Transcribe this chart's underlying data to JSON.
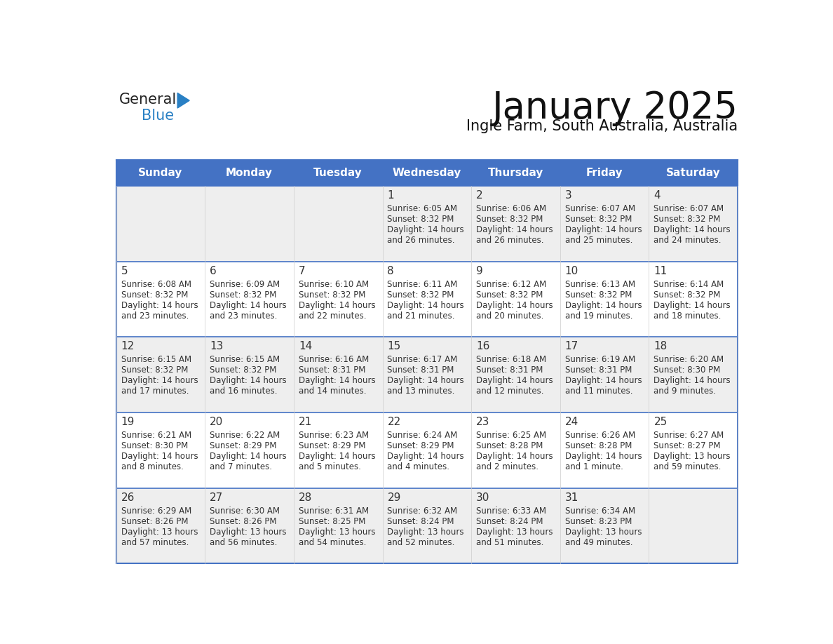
{
  "title": "January 2025",
  "subtitle": "Ingle Farm, South Australia, Australia",
  "header_bg": "#4472C4",
  "header_text_color": "#FFFFFF",
  "header_days": [
    "Sunday",
    "Monday",
    "Tuesday",
    "Wednesday",
    "Thursday",
    "Friday",
    "Saturday"
  ],
  "row0_bg": "#EEEEEE",
  "row1_bg": "#FFFFFF",
  "row2_bg": "#EEEEEE",
  "row3_bg": "#FFFFFF",
  "row4_bg": "#EEEEEE",
  "cell_text_color": "#333333",
  "day_number_color": "#333333",
  "border_color": "#4472C4",
  "logo_general_color": "#222222",
  "logo_blue_color": "#2980C4",
  "weeks": [
    {
      "days": [
        {
          "day": "",
          "sunrise": "",
          "sunset": "",
          "daylight_h": "",
          "daylight_m": ""
        },
        {
          "day": "",
          "sunrise": "",
          "sunset": "",
          "daylight_h": "",
          "daylight_m": ""
        },
        {
          "day": "",
          "sunrise": "",
          "sunset": "",
          "daylight_h": "",
          "daylight_m": ""
        },
        {
          "day": "1",
          "sunrise": "6:05 AM",
          "sunset": "8:32 PM",
          "daylight_h": "14 hours",
          "daylight_m": "and 26 minutes."
        },
        {
          "day": "2",
          "sunrise": "6:06 AM",
          "sunset": "8:32 PM",
          "daylight_h": "14 hours",
          "daylight_m": "and 26 minutes."
        },
        {
          "day": "3",
          "sunrise": "6:07 AM",
          "sunset": "8:32 PM",
          "daylight_h": "14 hours",
          "daylight_m": "and 25 minutes."
        },
        {
          "day": "4",
          "sunrise": "6:07 AM",
          "sunset": "8:32 PM",
          "daylight_h": "14 hours",
          "daylight_m": "and 24 minutes."
        }
      ]
    },
    {
      "days": [
        {
          "day": "5",
          "sunrise": "6:08 AM",
          "sunset": "8:32 PM",
          "daylight_h": "14 hours",
          "daylight_m": "and 23 minutes."
        },
        {
          "day": "6",
          "sunrise": "6:09 AM",
          "sunset": "8:32 PM",
          "daylight_h": "14 hours",
          "daylight_m": "and 23 minutes."
        },
        {
          "day": "7",
          "sunrise": "6:10 AM",
          "sunset": "8:32 PM",
          "daylight_h": "14 hours",
          "daylight_m": "and 22 minutes."
        },
        {
          "day": "8",
          "sunrise": "6:11 AM",
          "sunset": "8:32 PM",
          "daylight_h": "14 hours",
          "daylight_m": "and 21 minutes."
        },
        {
          "day": "9",
          "sunrise": "6:12 AM",
          "sunset": "8:32 PM",
          "daylight_h": "14 hours",
          "daylight_m": "and 20 minutes."
        },
        {
          "day": "10",
          "sunrise": "6:13 AM",
          "sunset": "8:32 PM",
          "daylight_h": "14 hours",
          "daylight_m": "and 19 minutes."
        },
        {
          "day": "11",
          "sunrise": "6:14 AM",
          "sunset": "8:32 PM",
          "daylight_h": "14 hours",
          "daylight_m": "and 18 minutes."
        }
      ]
    },
    {
      "days": [
        {
          "day": "12",
          "sunrise": "6:15 AM",
          "sunset": "8:32 PM",
          "daylight_h": "14 hours",
          "daylight_m": "and 17 minutes."
        },
        {
          "day": "13",
          "sunrise": "6:15 AM",
          "sunset": "8:32 PM",
          "daylight_h": "14 hours",
          "daylight_m": "and 16 minutes."
        },
        {
          "day": "14",
          "sunrise": "6:16 AM",
          "sunset": "8:31 PM",
          "daylight_h": "14 hours",
          "daylight_m": "and 14 minutes."
        },
        {
          "day": "15",
          "sunrise": "6:17 AM",
          "sunset": "8:31 PM",
          "daylight_h": "14 hours",
          "daylight_m": "and 13 minutes."
        },
        {
          "day": "16",
          "sunrise": "6:18 AM",
          "sunset": "8:31 PM",
          "daylight_h": "14 hours",
          "daylight_m": "and 12 minutes."
        },
        {
          "day": "17",
          "sunrise": "6:19 AM",
          "sunset": "8:31 PM",
          "daylight_h": "14 hours",
          "daylight_m": "and 11 minutes."
        },
        {
          "day": "18",
          "sunrise": "6:20 AM",
          "sunset": "8:30 PM",
          "daylight_h": "14 hours",
          "daylight_m": "and 9 minutes."
        }
      ]
    },
    {
      "days": [
        {
          "day": "19",
          "sunrise": "6:21 AM",
          "sunset": "8:30 PM",
          "daylight_h": "14 hours",
          "daylight_m": "and 8 minutes."
        },
        {
          "day": "20",
          "sunrise": "6:22 AM",
          "sunset": "8:29 PM",
          "daylight_h": "14 hours",
          "daylight_m": "and 7 minutes."
        },
        {
          "day": "21",
          "sunrise": "6:23 AM",
          "sunset": "8:29 PM",
          "daylight_h": "14 hours",
          "daylight_m": "and 5 minutes."
        },
        {
          "day": "22",
          "sunrise": "6:24 AM",
          "sunset": "8:29 PM",
          "daylight_h": "14 hours",
          "daylight_m": "and 4 minutes."
        },
        {
          "day": "23",
          "sunrise": "6:25 AM",
          "sunset": "8:28 PM",
          "daylight_h": "14 hours",
          "daylight_m": "and 2 minutes."
        },
        {
          "day": "24",
          "sunrise": "6:26 AM",
          "sunset": "8:28 PM",
          "daylight_h": "14 hours",
          "daylight_m": "and 1 minute."
        },
        {
          "day": "25",
          "sunrise": "6:27 AM",
          "sunset": "8:27 PM",
          "daylight_h": "13 hours",
          "daylight_m": "and 59 minutes."
        }
      ]
    },
    {
      "days": [
        {
          "day": "26",
          "sunrise": "6:29 AM",
          "sunset": "8:26 PM",
          "daylight_h": "13 hours",
          "daylight_m": "and 57 minutes."
        },
        {
          "day": "27",
          "sunrise": "6:30 AM",
          "sunset": "8:26 PM",
          "daylight_h": "13 hours",
          "daylight_m": "and 56 minutes."
        },
        {
          "day": "28",
          "sunrise": "6:31 AM",
          "sunset": "8:25 PM",
          "daylight_h": "13 hours",
          "daylight_m": "and 54 minutes."
        },
        {
          "day": "29",
          "sunrise": "6:32 AM",
          "sunset": "8:24 PM",
          "daylight_h": "13 hours",
          "daylight_m": "and 52 minutes."
        },
        {
          "day": "30",
          "sunrise": "6:33 AM",
          "sunset": "8:24 PM",
          "daylight_h": "13 hours",
          "daylight_m": "and 51 minutes."
        },
        {
          "day": "31",
          "sunrise": "6:34 AM",
          "sunset": "8:23 PM",
          "daylight_h": "13 hours",
          "daylight_m": "and 49 minutes."
        },
        {
          "day": "",
          "sunrise": "",
          "sunset": "",
          "daylight_h": "",
          "daylight_m": ""
        }
      ]
    }
  ]
}
